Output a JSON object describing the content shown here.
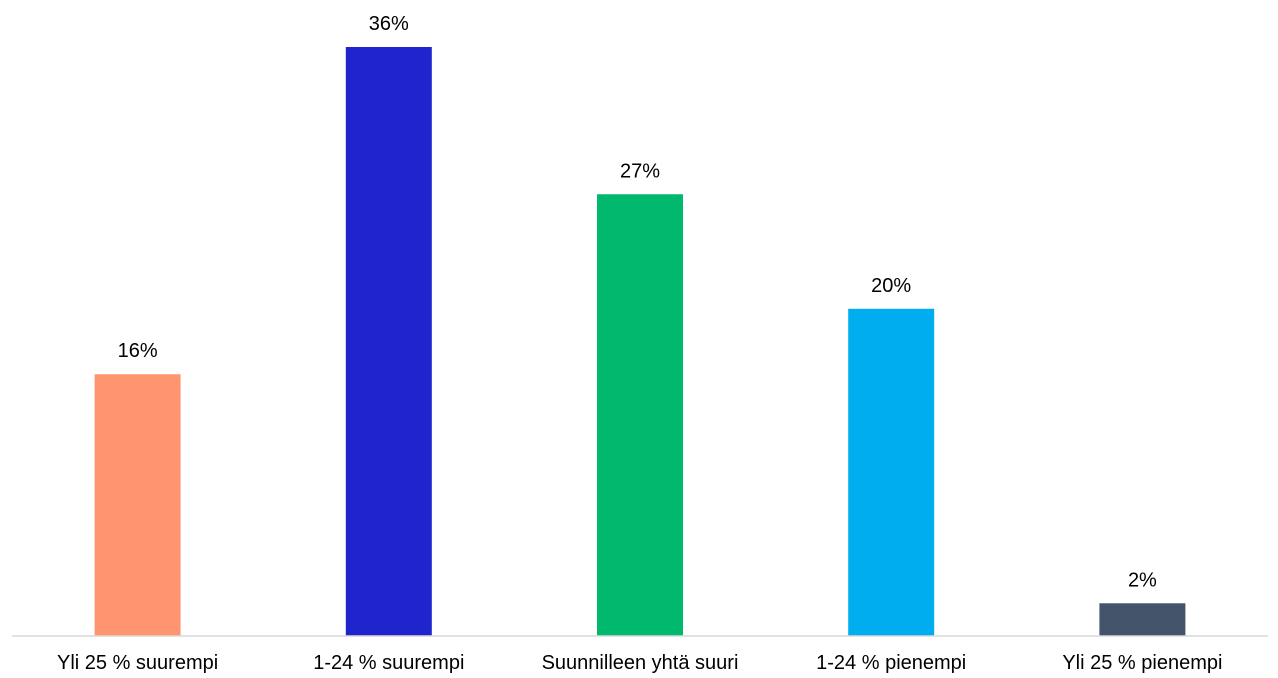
{
  "chart_data": {
    "type": "bar",
    "categories": [
      "Yli 25 % suurempi",
      "1-24 % suurempi",
      "Suunnilleen yhtä suuri",
      "1-24 % pienempi",
      "Yli 25 % pienempi"
    ],
    "values": [
      16,
      36,
      27,
      20,
      2
    ],
    "value_labels": [
      "16%",
      "36%",
      "27%",
      "20%",
      "2%"
    ],
    "colors": [
      "#FF9470",
      "#1F24CC",
      "#00B86E",
      "#00AEEF",
      "#44546A"
    ],
    "ylim": [
      0,
      36
    ],
    "grid": false,
    "legend": "none"
  }
}
